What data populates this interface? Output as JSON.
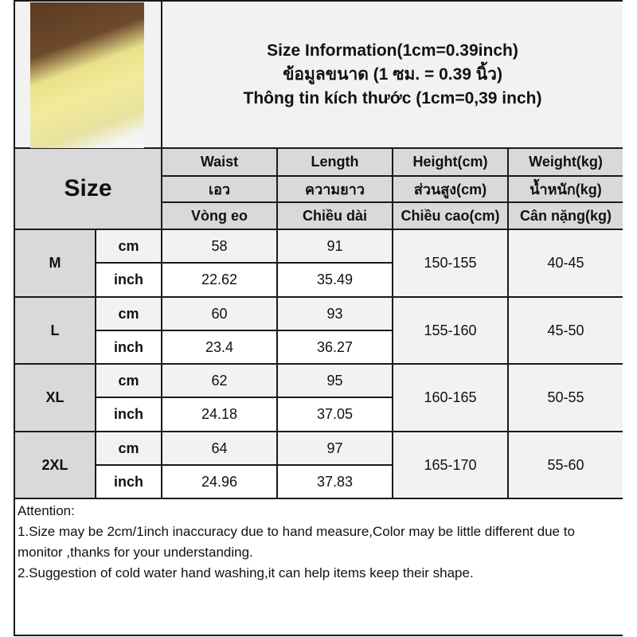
{
  "title_lines": [
    "Size Information(1cm=0.39inch)",
    "ข้อมูลขนาด (1 ซม. = 0.39 นิ้ว)",
    "Thông tin kích thước (1cm=0,39 inch)"
  ],
  "size_label": "Size",
  "headers": [
    [
      "Waist",
      "เอว",
      "Vòng eo"
    ],
    [
      "Length",
      "ความยาว",
      "Chiều dài"
    ],
    [
      "Height(cm)",
      "ส่วนสูง(cm)",
      "Chiều cao(cm)"
    ],
    [
      "Weight(kg)",
      "น้ำหนัก(kg)",
      "Cân nặng(kg)"
    ]
  ],
  "units": {
    "cm": "cm",
    "inch": "inch"
  },
  "rows": [
    {
      "size": "M",
      "cm": [
        "58",
        "91"
      ],
      "inch": [
        "22.62",
        "35.49"
      ],
      "height": "150-155",
      "weight": "40-45"
    },
    {
      "size": "L",
      "cm": [
        "60",
        "93"
      ],
      "inch": [
        "23.4",
        "36.27"
      ],
      "height": "155-160",
      "weight": "45-50"
    },
    {
      "size": "XL",
      "cm": [
        "62",
        "95"
      ],
      "inch": [
        "24.18",
        "37.05"
      ],
      "height": "160-165",
      "weight": "50-55"
    },
    {
      "size": "2XL",
      "cm": [
        "64",
        "97"
      ],
      "inch": [
        "24.96",
        "37.83"
      ],
      "height": "165-170",
      "weight": "55-60"
    }
  ],
  "notes": [
    "Attention:",
    "1.Size may be 2cm/1inch inaccuracy due to hand measure,Color may be little different due to monitor ,thanks for your understanding.",
    "2.Suggestion of cold water hand washing,it can help items keep their shape."
  ],
  "colors": {
    "header": "#d9d9d9",
    "light": "#f2f2f2",
    "border": "#1a1a1a"
  }
}
